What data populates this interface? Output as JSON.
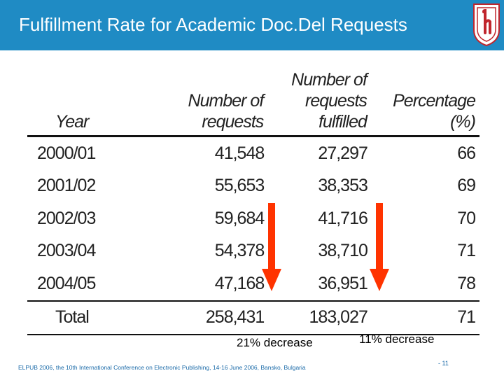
{
  "slide": {
    "title": "Fulfillment Rate for Academic Doc.Del Requests",
    "page_number": "- 11",
    "footer": "ELPUB 2006, the 10th International Conference on Electronic Publishing, 14-16 June 2006, Bansko, Bulgaria"
  },
  "colors": {
    "header": "#1f8bc4",
    "logo_red": "#c0262d",
    "arrow_red": "#ff3300"
  },
  "logo": {
    "icon": "university-crest-icon"
  },
  "table": {
    "headers": {
      "year": "Year",
      "requests": "Number of requests",
      "fulfilled_line1": "Number of",
      "fulfilled_line2": "requests fulfilled",
      "percentage": "Percentage (%)"
    },
    "rows": [
      {
        "year": "2000/01",
        "requests": "41,548",
        "fulfilled": "27,297",
        "percentage": "66"
      },
      {
        "year": "2001/02",
        "requests": "55,653",
        "fulfilled": "38,353",
        "percentage": "69"
      },
      {
        "year": "2002/03",
        "requests": "59,684",
        "fulfilled": "41,716",
        "percentage": "70"
      },
      {
        "year": "2003/04",
        "requests": "54,378",
        "fulfilled": "38,710",
        "percentage": "71"
      },
      {
        "year": "2004/05",
        "requests": "47,168",
        "fulfilled": "36,951",
        "percentage": "78"
      },
      {
        "year": "Total",
        "requests": "258,431",
        "fulfilled": "183,027",
        "percentage": "71"
      }
    ]
  },
  "annotations": {
    "requests_decrease": "21% decrease",
    "fulfilled_decrease": "11% decrease"
  }
}
